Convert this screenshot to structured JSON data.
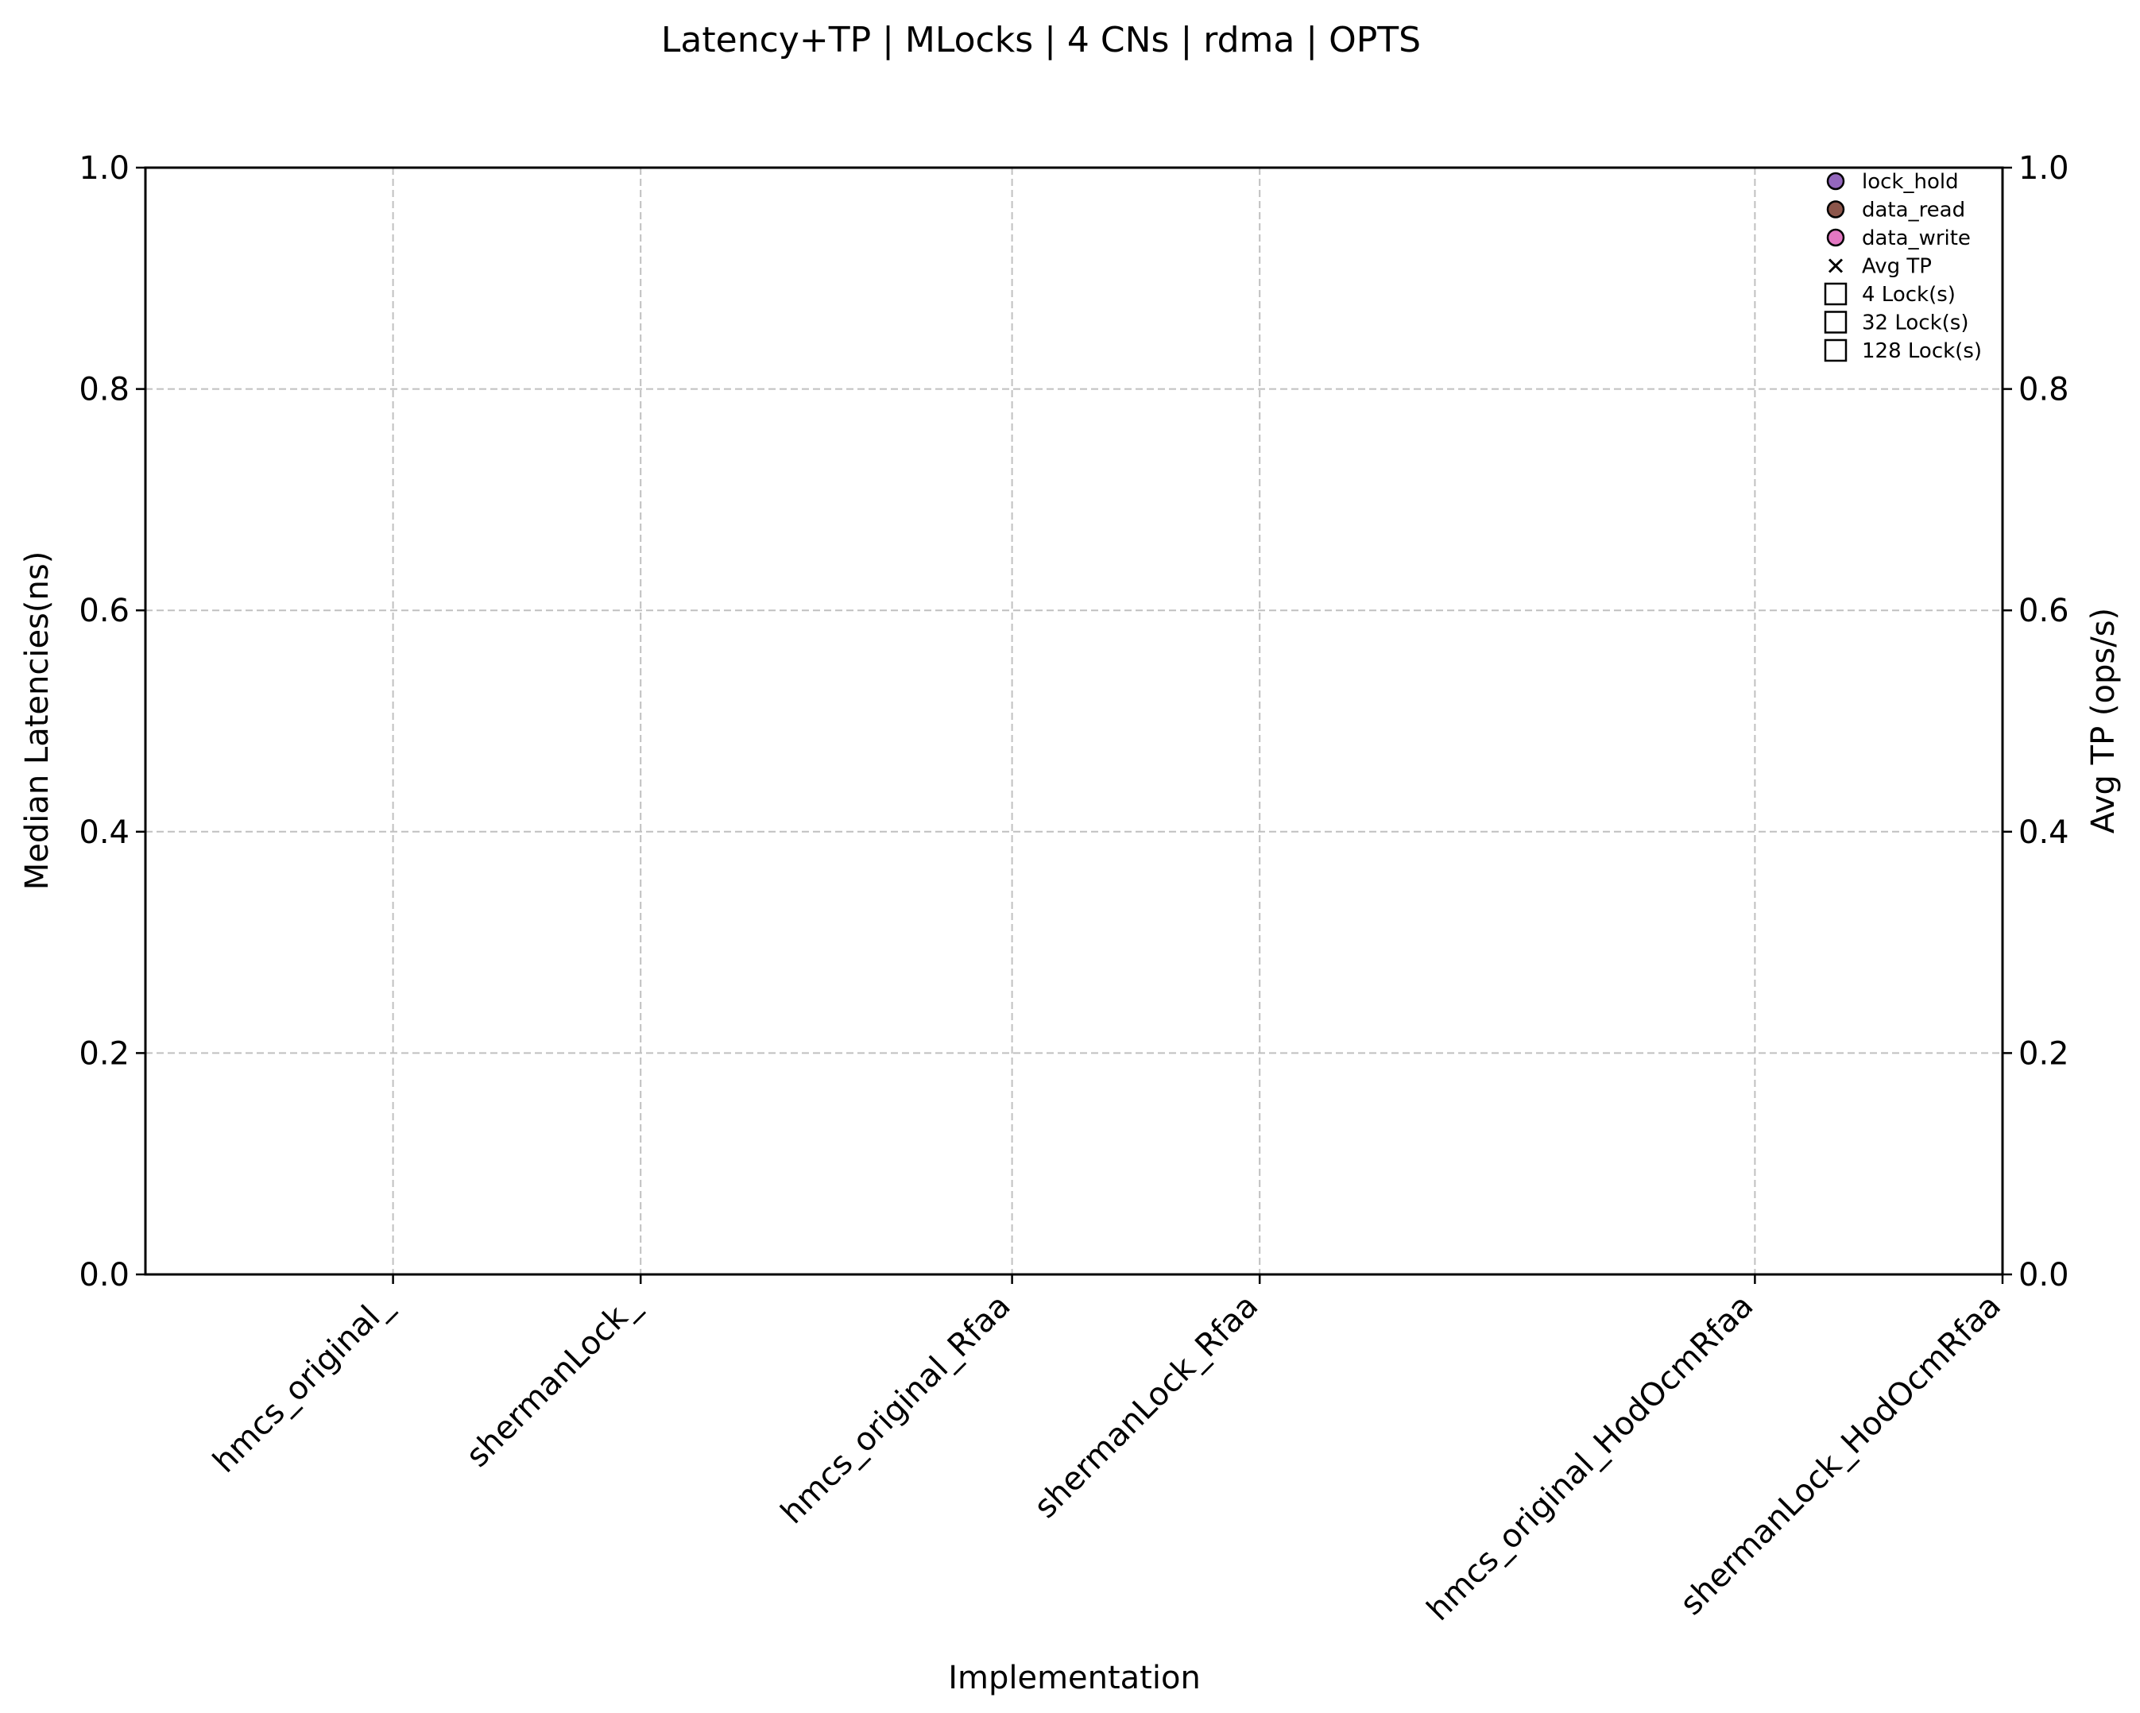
{
  "chart_data": {
    "type": "scatter",
    "title": "Latency+TP | MLocks | 4 CNs | rdma | OPTS",
    "xlabel": "Implementation",
    "ylabel": "Median Latencies(ns)",
    "y2label": "Avg TP (ops/s)",
    "categories": [
      "hmcs_original_",
      "shermanLock_",
      "hmcs_original_Rfaa",
      "shermanLock_Rfaa",
      "hmcs_original_HodOcmRfaa",
      "shermanLock_HodOcmRfaa"
    ],
    "category_positions": [
      1,
      2,
      3.5,
      4.5,
      6.5,
      7.5
    ],
    "xlim": [
      0,
      7.5
    ],
    "ylim": [
      0,
      1
    ],
    "y2lim": [
      0,
      1
    ],
    "y_ticks": [
      "0.0",
      "0.2",
      "0.4",
      "0.6",
      "0.8",
      "1.0"
    ],
    "y2_ticks": [
      "0.0",
      "0.2",
      "0.4",
      "0.6",
      "0.8",
      "1.0"
    ],
    "grid": true,
    "legend_position": "top-right",
    "series": [],
    "legend": [
      {
        "label": "lock_hold",
        "marker": "circle",
        "color": "#9467bd"
      },
      {
        "label": "data_read",
        "marker": "circle",
        "color": "#8c564b"
      },
      {
        "label": "data_write",
        "marker": "circle",
        "color": "#e377c2"
      },
      {
        "label": "Avg TP",
        "marker": "x",
        "color": "#000000"
      },
      {
        "label": "4 Lock(s)",
        "marker": "square",
        "color": "#ffffff"
      },
      {
        "label": "32 Lock(s)",
        "marker": "square",
        "color": "#ffffff"
      },
      {
        "label": "128 Lock(s)",
        "marker": "square",
        "color": "#ffffff"
      }
    ]
  }
}
